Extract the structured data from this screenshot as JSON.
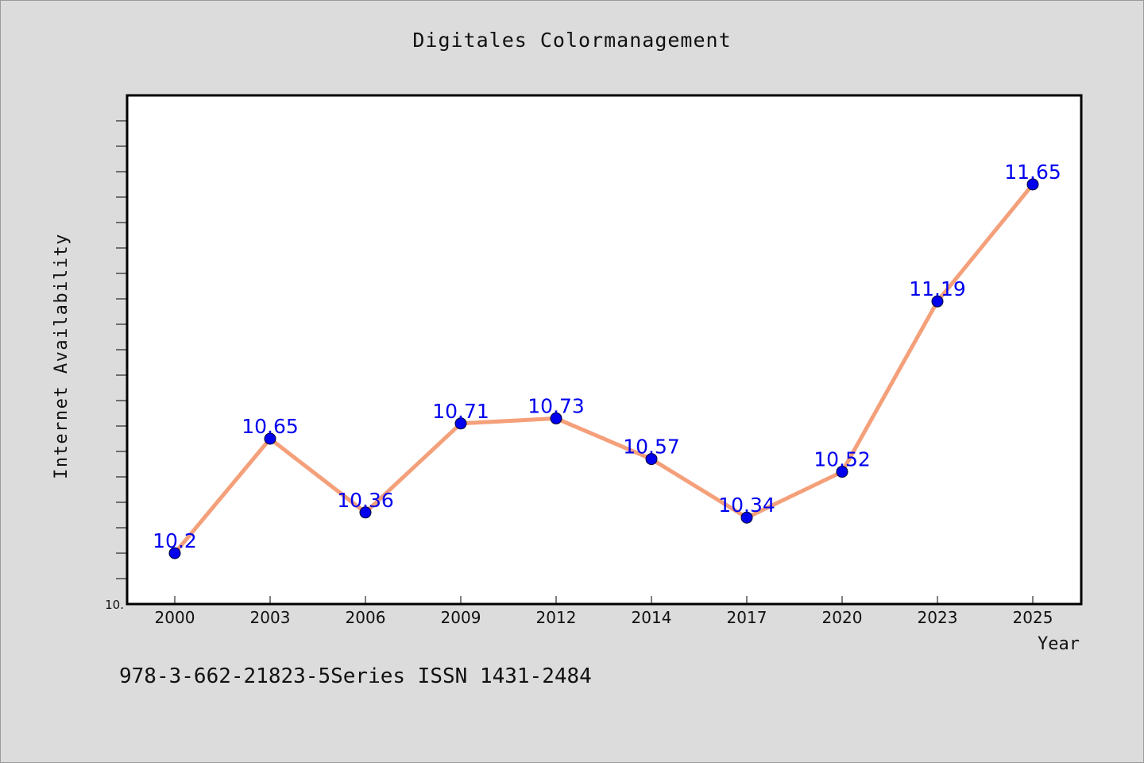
{
  "page": {
    "background": "#dcdcdc"
  },
  "caption": "978-3-662-21823-5Series ISSN 1431-2484",
  "chart_data": {
    "type": "line",
    "title": "Digitales Colormanagement",
    "xlabel": "Year",
    "ylabel": "Internet Availability",
    "categories": [
      "2000",
      "2003",
      "2006",
      "2009",
      "2012",
      "2014",
      "2017",
      "2020",
      "2023",
      "2025"
    ],
    "values": [
      10.2,
      10.65,
      10.36,
      10.71,
      10.73,
      10.57,
      10.34,
      10.52,
      11.19,
      11.65
    ],
    "data_labels": [
      "10.2",
      "10.65",
      "10.36",
      "10.71",
      "10.73",
      "10.57",
      "10.34",
      "10.52",
      "11.19",
      "11.65"
    ],
    "ylim": [
      10.0,
      12.0
    ],
    "ytick_labels": [
      "10."
    ],
    "line_color": "#f4a07a",
    "marker_color": "#0000ee",
    "label_color": "#0000ee",
    "grid": false,
    "legend": "none"
  }
}
